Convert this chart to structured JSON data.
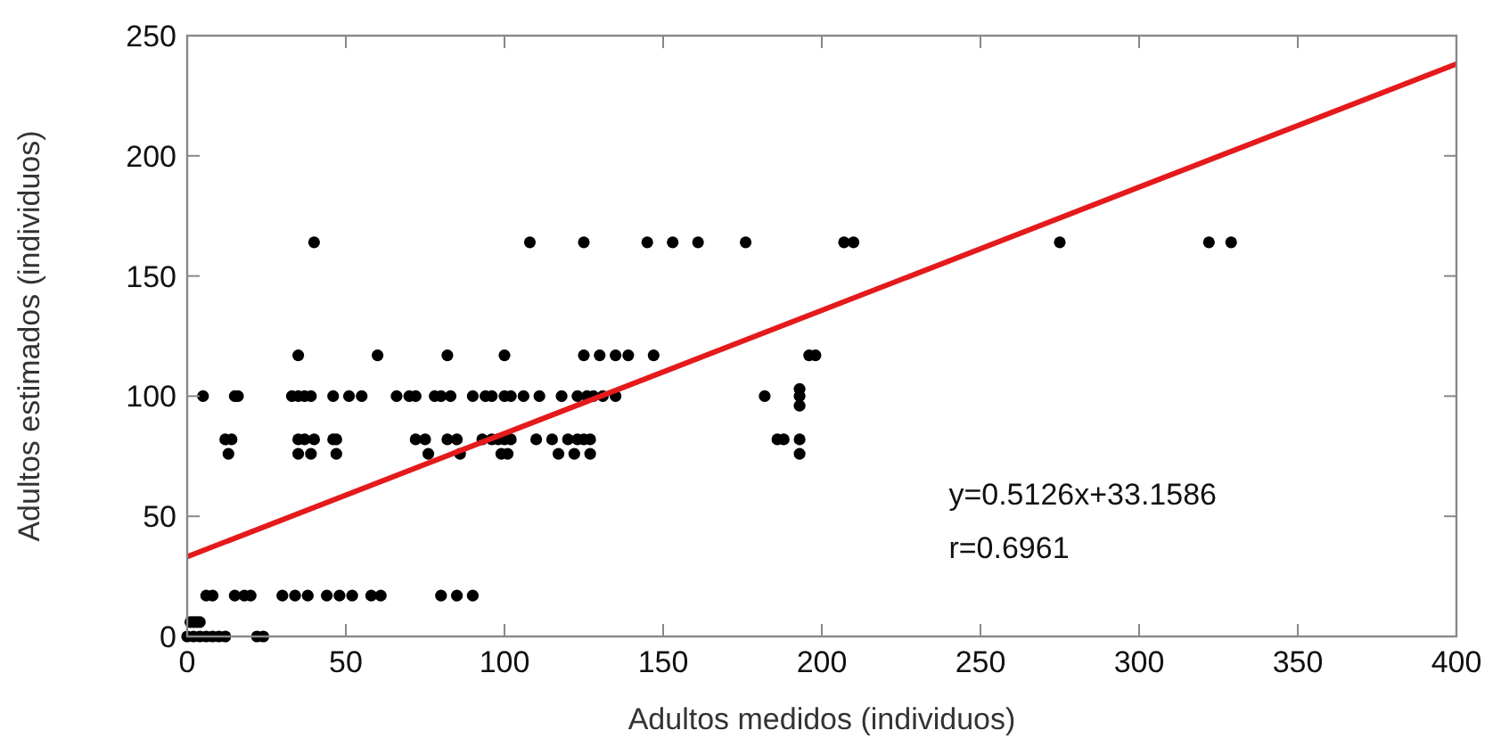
{
  "chart_data": {
    "type": "scatter",
    "xlabel": "Adultos medidos (individuos)",
    "ylabel": "Adultos estimados (individuos)",
    "xlim": [
      0,
      400
    ],
    "xticks": [
      0,
      50,
      100,
      150,
      200,
      250,
      300,
      350,
      400
    ],
    "ylim": [
      0,
      250
    ],
    "yticks": [
      0,
      50,
      100,
      150,
      200,
      250
    ],
    "grid": false,
    "annotations": [
      "y=0.5126x+33.1586",
      "r=0.6961"
    ],
    "series": [
      {
        "color": "#000000",
        "marker": "circle",
        "x": [
          40,
          108,
          125,
          145,
          153,
          161,
          176,
          207,
          210,
          275,
          322,
          329,
          35,
          60,
          82,
          100,
          125,
          130,
          135,
          139,
          147,
          196,
          198,
          5,
          15,
          16,
          33,
          35,
          37,
          39,
          46,
          51,
          55,
          66,
          70,
          72,
          78,
          80,
          83,
          90,
          94,
          96,
          100,
          102,
          106,
          111,
          118,
          123,
          126,
          128,
          131,
          135,
          182,
          193,
          193,
          193,
          12,
          14,
          35,
          37,
          40,
          46,
          47,
          72,
          75,
          82,
          85,
          93,
          96,
          98,
          100,
          102,
          110,
          115,
          120,
          123,
          125,
          127,
          186,
          188,
          193,
          13,
          35,
          39,
          47,
          76,
          86,
          99,
          101,
          117,
          122,
          127,
          193,
          6,
          8,
          15,
          18,
          20,
          30,
          34,
          38,
          44,
          48,
          52,
          58,
          61,
          80,
          85,
          90,
          1,
          2,
          3,
          4,
          0,
          2,
          4,
          6,
          8,
          10,
          12,
          22,
          24
        ],
        "values": [
          164,
          164,
          164,
          164,
          164,
          164,
          164,
          164,
          164,
          164,
          164,
          164,
          117,
          117,
          117,
          117,
          117,
          117,
          117,
          117,
          117,
          117,
          117,
          100,
          100,
          100,
          100,
          100,
          100,
          100,
          100,
          100,
          100,
          100,
          100,
          100,
          100,
          100,
          100,
          100,
          100,
          100,
          100,
          100,
          100,
          100,
          100,
          100,
          100,
          100,
          100,
          100,
          100,
          100,
          96,
          103,
          82,
          82,
          82,
          82,
          82,
          82,
          82,
          82,
          82,
          82,
          82,
          82,
          82,
          82,
          82,
          82,
          82,
          82,
          82,
          82,
          82,
          82,
          82,
          82,
          82,
          76,
          76,
          76,
          76,
          76,
          76,
          76,
          76,
          76,
          76,
          76,
          76,
          17,
          17,
          17,
          17,
          17,
          17,
          17,
          17,
          17,
          17,
          17,
          17,
          17,
          17,
          17,
          17,
          6,
          6,
          6,
          6,
          0,
          0,
          0,
          0,
          0,
          0,
          0,
          0,
          0
        ]
      },
      {
        "type": "line",
        "color": "#e41a1c",
        "x": [
          0,
          400
        ],
        "values": [
          33.2,
          238.2
        ]
      }
    ]
  }
}
